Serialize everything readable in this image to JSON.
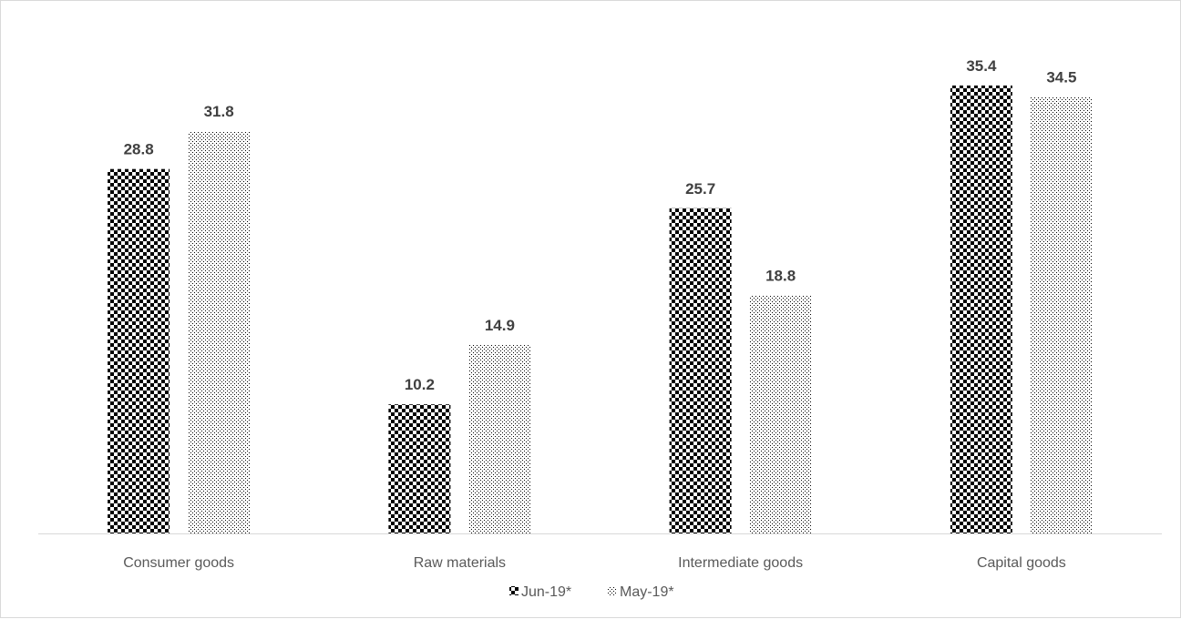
{
  "chart_data": {
    "type": "bar",
    "categories": [
      "Consumer goods",
      "Raw materials",
      "Intermediate goods",
      "Capital goods"
    ],
    "series": [
      {
        "name": "Jun-19*",
        "values": [
          28.8,
          10.2,
          25.7,
          35.4
        ],
        "pattern": "checkerboard",
        "color": "#000000"
      },
      {
        "name": "May-19*",
        "values": [
          31.8,
          14.9,
          18.8,
          34.5
        ],
        "pattern": "dotted",
        "color": "#000000"
      }
    ],
    "ylim": [
      0,
      37.5
    ],
    "data_labels": true,
    "grid": false,
    "legend": "bottom-center",
    "colors": {
      "axis": "#d9d9d9",
      "label": "#404040",
      "tick": "#595959",
      "border": "#d9d9d9"
    }
  }
}
